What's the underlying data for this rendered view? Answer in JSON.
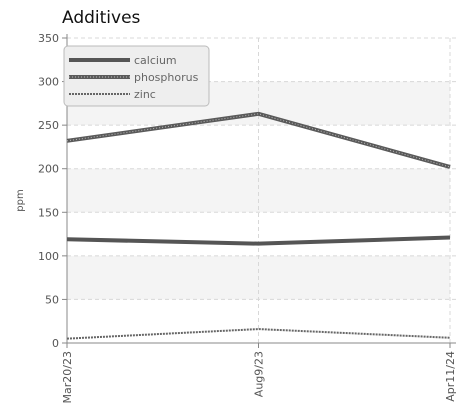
{
  "chart_data": {
    "type": "line",
    "title": "Additives",
    "xlabel": "",
    "ylabel": "ppm",
    "categories": [
      "Mar20/23",
      "Aug9/23",
      "Apr11/24"
    ],
    "ylim": [
      0,
      350
    ],
    "yticks": [
      0,
      50,
      100,
      150,
      200,
      250,
      300,
      350
    ],
    "grid": true,
    "legend_position": "top-left",
    "series": [
      {
        "name": "calcium",
        "values": [
          119,
          114,
          121
        ],
        "color": "#555555",
        "style": "solid"
      },
      {
        "name": "phosphorus",
        "values": [
          232,
          263,
          202
        ],
        "color": "#555555",
        "style": "dotted-thick"
      },
      {
        "name": "zinc",
        "values": [
          5,
          16,
          6
        ],
        "color": "#666666",
        "style": "dotted-thin"
      }
    ]
  }
}
